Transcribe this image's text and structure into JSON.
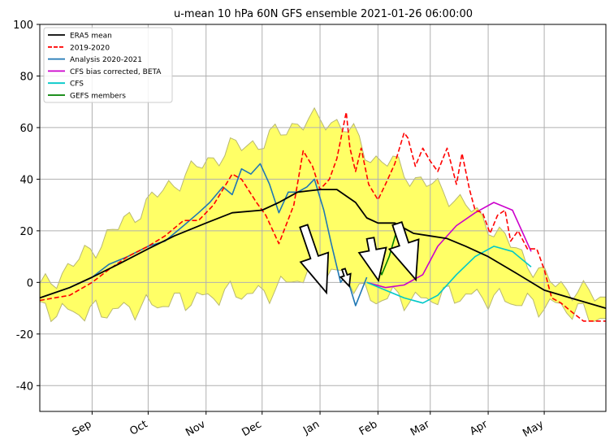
{
  "chart_data": {
    "type": "line",
    "title": "u-mean 10 hPa 60N GFS ensemble 2021-01-26 06:00:00",
    "xlabel": "",
    "ylabel": "",
    "ylim": [
      -50,
      100
    ],
    "yticks": [
      -40,
      -20,
      0,
      20,
      40,
      60,
      80,
      100
    ],
    "xlim": [
      "2020-08-04",
      "2021-06-03"
    ],
    "xticks": [
      {
        "label": "Sep",
        "date": "2020-09-01"
      },
      {
        "label": "Oct",
        "date": "2020-10-01"
      },
      {
        "label": "Nov",
        "date": "2020-11-01"
      },
      {
        "label": "Dec",
        "date": "2020-12-01"
      },
      {
        "label": "Jan",
        "date": "2021-01-01"
      },
      {
        "label": "Feb",
        "date": "2021-02-01"
      },
      {
        "label": "Mar",
        "date": "2021-03-01"
      },
      {
        "label": "Apr",
        "date": "2021-04-01"
      },
      {
        "label": "May",
        "date": "2021-05-01"
      }
    ],
    "grid": true,
    "legend_position": "top-left",
    "colors": {
      "era5": "#000000",
      "y2019": "#ff0000",
      "analysis": "#1f77b4",
      "cfs_bias": "#cc00cc",
      "cfs": "#00c8c8",
      "gefs": "#008000",
      "envelope_fill": "#ffff66",
      "envelope_edge": "#b8b870"
    },
    "series": [
      {
        "name": "ERA5 mean",
        "key": "era5",
        "style": "solid",
        "x": [
          "2020-08-04",
          "2020-08-20",
          "2020-09-01",
          "2020-09-15",
          "2020-10-01",
          "2020-10-15",
          "2020-11-01",
          "2020-11-15",
          "2020-12-01",
          "2020-12-10",
          "2020-12-20",
          "2021-01-01",
          "2021-01-10",
          "2021-01-20",
          "2021-01-26",
          "2021-02-01",
          "2021-02-10",
          "2021-02-20",
          "2021-03-01",
          "2021-03-10",
          "2021-03-20",
          "2021-04-01",
          "2021-04-15",
          "2021-05-01",
          "2021-05-15",
          "2021-06-03"
        ],
        "y": [
          -6,
          -2,
          2,
          7,
          13,
          18,
          23,
          27,
          28,
          31,
          35,
          36,
          36,
          31,
          25,
          23,
          23,
          19,
          18,
          17,
          14,
          10,
          4,
          -3,
          -6,
          -10
        ]
      },
      {
        "name": "2019-2020",
        "key": "y2019",
        "style": "dashed",
        "x": [
          "2020-08-04",
          "2020-08-20",
          "2020-09-01",
          "2020-09-10",
          "2020-09-20",
          "2020-10-01",
          "2020-10-10",
          "2020-10-20",
          "2020-10-28",
          "2020-11-05",
          "2020-11-15",
          "2020-11-20",
          "2020-11-28",
          "2020-12-03",
          "2020-12-10",
          "2020-12-18",
          "2020-12-23",
          "2020-12-28",
          "2021-01-01",
          "2021-01-06",
          "2021-01-10",
          "2021-01-15",
          "2021-01-17",
          "2021-01-20",
          "2021-01-23",
          "2021-01-27",
          "2021-02-01",
          "2021-02-05",
          "2021-02-10",
          "2021-02-15",
          "2021-02-17",
          "2021-02-21",
          "2021-02-25",
          "2021-03-01",
          "2021-03-05",
          "2021-03-10",
          "2021-03-15",
          "2021-03-18",
          "2021-03-22",
          "2021-03-25",
          "2021-03-29",
          "2021-04-02",
          "2021-04-06",
          "2021-04-10",
          "2021-04-13",
          "2021-04-17",
          "2021-04-22",
          "2021-04-27",
          "2021-05-01",
          "2021-05-05",
          "2021-05-10",
          "2021-05-15",
          "2021-05-22",
          "2021-06-03"
        ],
        "y": [
          -7,
          -5,
          0,
          5,
          10,
          14,
          18,
          24,
          24,
          30,
          42,
          40,
          31,
          26,
          15,
          30,
          51,
          45,
          36,
          40,
          48,
          66,
          52,
          43,
          52,
          38,
          32,
          38,
          46,
          58,
          56,
          45,
          52,
          47,
          43,
          52,
          38,
          50,
          36,
          28,
          27,
          19,
          26,
          28,
          16,
          20,
          13,
          13,
          5,
          -6,
          -8,
          -11,
          -15,
          -15
        ]
      },
      {
        "name": "Analysis 2020-2021",
        "key": "analysis",
        "style": "solid",
        "x": [
          "2020-08-04",
          "2020-08-20",
          "2020-09-01",
          "2020-09-10",
          "2020-09-20",
          "2020-10-01",
          "2020-10-10",
          "2020-10-20",
          "2020-10-28",
          "2020-11-03",
          "2020-11-10",
          "2020-11-15",
          "2020-11-20",
          "2020-11-25",
          "2020-11-30",
          "2020-12-05",
          "2020-12-10",
          "2020-12-15",
          "2020-12-20",
          "2020-12-25",
          "2020-12-29",
          "2021-01-03",
          "2021-01-07",
          "2021-01-12",
          "2021-01-15",
          "2021-01-20",
          "2021-01-26"
        ],
        "y": [
          -6,
          -2,
          2,
          7,
          10,
          14,
          16,
          22,
          27,
          31,
          37,
          34,
          44,
          42,
          46,
          38,
          27,
          35,
          35,
          37,
          40,
          28,
          15,
          0,
          3,
          -9,
          2
        ]
      },
      {
        "name": "CFS bias corrected, BETA",
        "key": "cfs_bias",
        "style": "solid",
        "x": [
          "2021-01-26",
          "2021-02-05",
          "2021-02-15",
          "2021-02-25",
          "2021-03-05",
          "2021-03-15",
          "2021-03-25",
          "2021-04-04",
          "2021-04-14",
          "2021-04-24"
        ],
        "y": [
          0,
          -2,
          -1,
          3,
          14,
          22,
          27,
          31,
          28,
          12
        ]
      },
      {
        "name": "CFS",
        "key": "cfs",
        "style": "solid",
        "x": [
          "2021-01-26",
          "2021-02-05",
          "2021-02-15",
          "2021-02-25",
          "2021-03-05",
          "2021-03-15",
          "2021-03-25",
          "2021-04-04",
          "2021-04-14",
          "2021-04-24"
        ],
        "y": [
          0,
          -3,
          -6,
          -8,
          -5,
          3,
          10,
          14,
          12,
          6
        ]
      },
      {
        "name": "GEFS members",
        "key": "gefs",
        "style": "solid",
        "x": [
          "2021-01-26",
          "2021-01-30",
          "2021-02-03",
          "2021-02-07",
          "2021-02-11"
        ],
        "y": [
          17,
          10,
          3,
          10,
          20
        ]
      }
    ],
    "annotations": []
  }
}
